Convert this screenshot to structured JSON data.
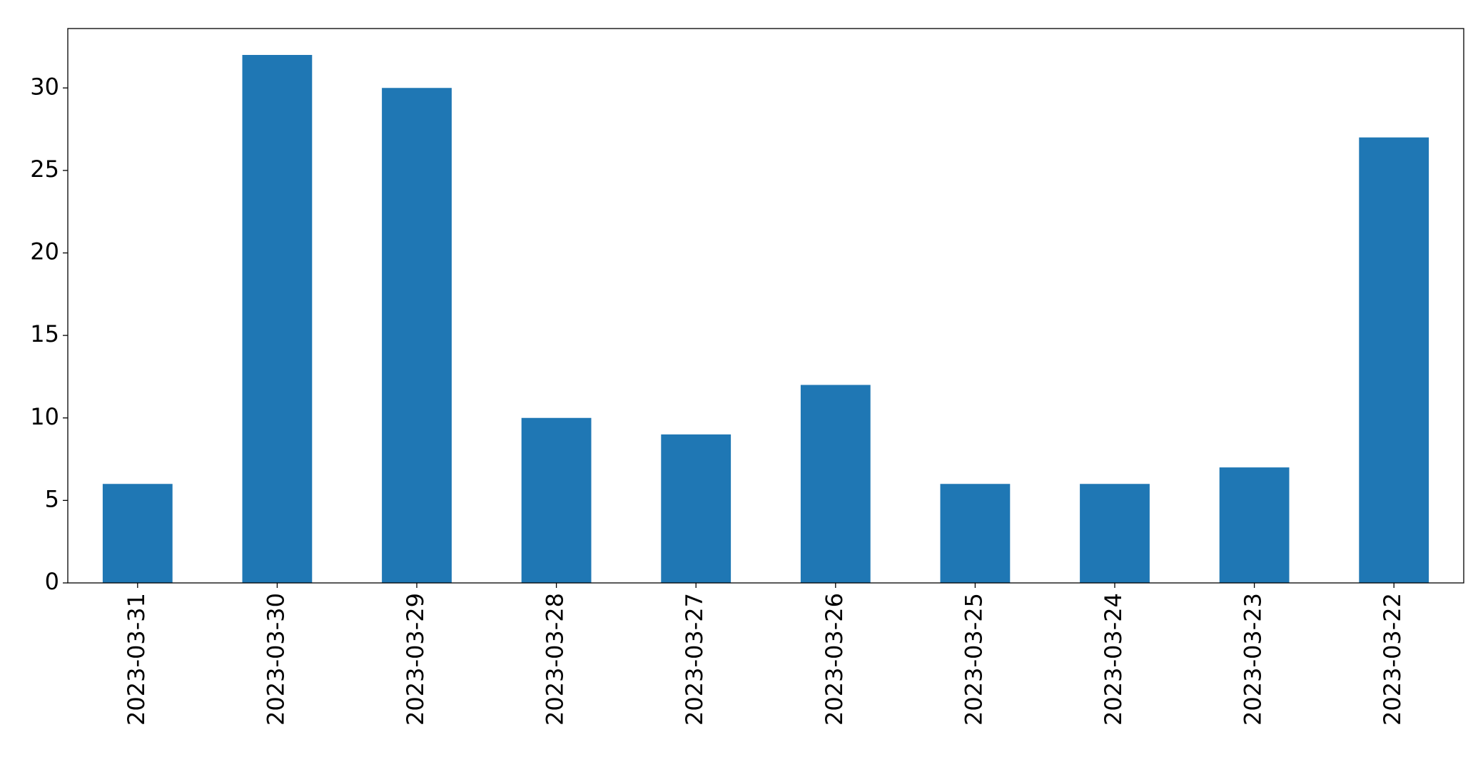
{
  "chart_data": {
    "type": "bar",
    "categories": [
      "2023-03-31",
      "2023-03-30",
      "2023-03-29",
      "2023-03-28",
      "2023-03-27",
      "2023-03-26",
      "2023-03-25",
      "2023-03-24",
      "2023-03-23",
      "2023-03-22"
    ],
    "values": [
      6,
      32,
      30,
      10,
      9,
      12,
      6,
      6,
      7,
      27
    ],
    "color": "#1f77b4",
    "ylim": [
      0,
      33.6
    ],
    "yticks": [
      0,
      5,
      10,
      15,
      20,
      25,
      30
    ],
    "grid": false
  }
}
